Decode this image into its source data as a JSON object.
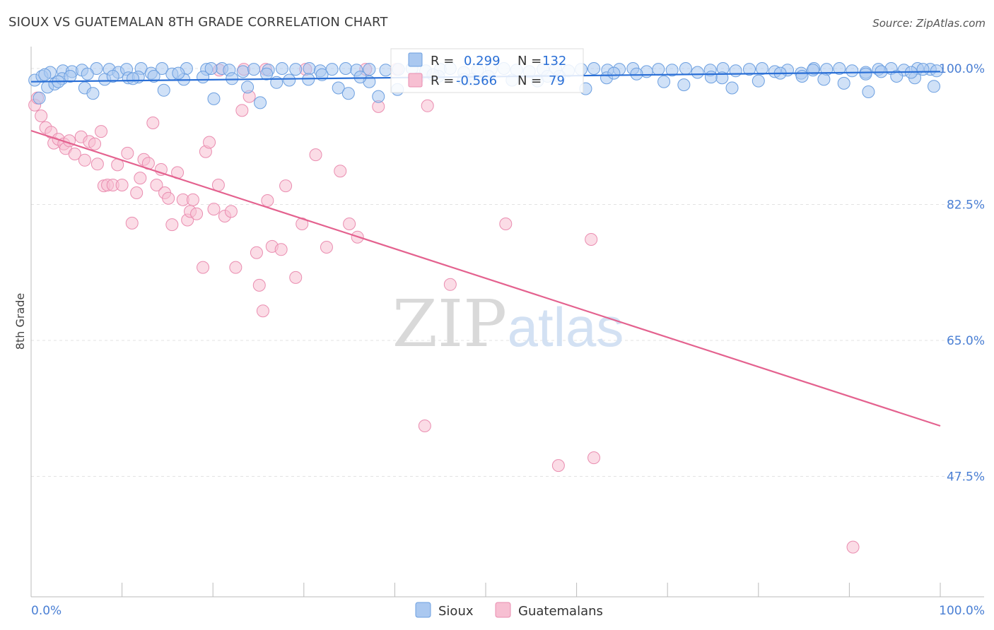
{
  "header": {
    "title": "SIOUX VS GUATEMALAN 8TH GRADE CORRELATION CHART",
    "source": "Source: ZipAtlas.com"
  },
  "watermark": {
    "zip": "ZIP",
    "atlas": "atlas"
  },
  "colors": {
    "sioux_fill": "#aac8f0",
    "sioux_stroke": "#6c9fe0",
    "sioux_line": "#2a6fd6",
    "guat_fill": "#f7bfd2",
    "guat_stroke": "#ea8db0",
    "guat_line": "#e4628f",
    "tick_text": "#4a7fd4",
    "grid": "#e3e3e3"
  },
  "chart_data": {
    "type": "scatter",
    "title": "SIOUX VS GUATEMALAN 8TH GRADE CORRELATION CHART",
    "ylabel": "8th Grade",
    "xlabel": "",
    "xlim": [
      0,
      100
    ],
    "ylim": [
      32.0,
      102.0
    ],
    "x_tick_labels": [
      {
        "value": 0,
        "label": "0.0%"
      },
      {
        "value": 100,
        "label": "100.0%"
      }
    ],
    "y_tick_labels": [
      {
        "value": 100.0,
        "label": "100.0%"
      },
      {
        "value": 82.5,
        "label": "82.5%"
      },
      {
        "value": 65.0,
        "label": "65.0%"
      },
      {
        "value": 47.5,
        "label": "47.5%"
      }
    ],
    "y_grid_values": [
      100.0,
      82.5,
      65.0,
      47.5
    ],
    "legend": {
      "placement": "top-center",
      "entries": [
        {
          "series": "Sioux",
          "r_label": "R =",
          "r_value": "0.299",
          "n_label": "N =",
          "n_value": "132"
        },
        {
          "series": "Guatemalans",
          "r_label": "R =",
          "r_value": "-0.566",
          "n_label": "N =",
          "n_value": "79"
        }
      ]
    },
    "bottom_legend": [
      "Sioux",
      "Guatemalans"
    ],
    "series": [
      {
        "name": "Sioux",
        "trend": [
          [
            0,
            98.3
          ],
          [
            100,
            99.6
          ]
        ],
        "points": [
          [
            0.4,
            98.5
          ],
          [
            1.2,
            99.0
          ],
          [
            2.1,
            99.5
          ],
          [
            3.5,
            99.7
          ],
          [
            4.5,
            99.6
          ],
          [
            5.6,
            99.8
          ],
          [
            7.2,
            100.0
          ],
          [
            8.6,
            99.9
          ],
          [
            9.6,
            99.5
          ],
          [
            10.5,
            99.9
          ],
          [
            12.1,
            100.0
          ],
          [
            13.2,
            99.4
          ],
          [
            14.4,
            100.0
          ],
          [
            15.5,
            99.3
          ],
          [
            17.1,
            100.0
          ],
          [
            19.3,
            99.9
          ],
          [
            21.0,
            100.0
          ],
          [
            21.8,
            99.8
          ],
          [
            23.3,
            99.6
          ],
          [
            24.5,
            99.9
          ],
          [
            26.1,
            99.8
          ],
          [
            27.6,
            100.0
          ],
          [
            29.1,
            99.9
          ],
          [
            30.6,
            100.0
          ],
          [
            31.8,
            99.7
          ],
          [
            33.1,
            99.9
          ],
          [
            34.6,
            100.0
          ],
          [
            35.8,
            99.8
          ],
          [
            37.2,
            99.9
          ],
          [
            39.0,
            99.8
          ],
          [
            40.4,
            99.9
          ],
          [
            41.9,
            100.0
          ],
          [
            43.4,
            99.7
          ],
          [
            45.0,
            99.9
          ],
          [
            46.1,
            100.0
          ],
          [
            47.6,
            99.5
          ],
          [
            49.1,
            99.8
          ],
          [
            50.6,
            99.9
          ],
          [
            52.0,
            100.0
          ],
          [
            53.4,
            99.8
          ],
          [
            54.8,
            99.6
          ],
          [
            56.3,
            99.9
          ],
          [
            57.7,
            100.0
          ],
          [
            59.1,
            99.7
          ],
          [
            60.5,
            99.9
          ],
          [
            61.9,
            100.0
          ],
          [
            63.4,
            99.8
          ],
          [
            64.7,
            99.9
          ],
          [
            66.2,
            100.0
          ],
          [
            67.7,
            99.6
          ],
          [
            69.0,
            99.9
          ],
          [
            70.5,
            99.8
          ],
          [
            72.0,
            100.0
          ],
          [
            73.3,
            99.5
          ],
          [
            74.7,
            99.8
          ],
          [
            76.1,
            100.0
          ],
          [
            77.5,
            99.7
          ],
          [
            79.0,
            99.9
          ],
          [
            80.4,
            100.0
          ],
          [
            81.8,
            99.6
          ],
          [
            83.2,
            99.8
          ],
          [
            84.7,
            99.4
          ],
          [
            86.1,
            100.0
          ],
          [
            87.5,
            99.9
          ],
          [
            88.9,
            100.0
          ],
          [
            90.3,
            99.7
          ],
          [
            91.8,
            99.5
          ],
          [
            93.2,
            99.9
          ],
          [
            94.6,
            100.0
          ],
          [
            96.0,
            99.8
          ],
          [
            97.5,
            100.0
          ],
          [
            98.9,
            99.9
          ],
          [
            99.6,
            99.7
          ],
          [
            0.9,
            96.2
          ],
          [
            1.8,
            97.6
          ],
          [
            2.6,
            98.0
          ],
          [
            3.4,
            98.7
          ],
          [
            4.3,
            99.0
          ],
          [
            5.9,
            97.5
          ],
          [
            6.8,
            96.8
          ],
          [
            8.1,
            98.6
          ],
          [
            9.0,
            99.0
          ],
          [
            10.7,
            98.8
          ],
          [
            11.8,
            98.9
          ],
          [
            13.5,
            99.0
          ],
          [
            14.6,
            97.2
          ],
          [
            16.8,
            98.6
          ],
          [
            18.9,
            98.9
          ],
          [
            20.1,
            96.1
          ],
          [
            22.1,
            98.7
          ],
          [
            23.8,
            97.6
          ],
          [
            25.2,
            95.6
          ],
          [
            27.0,
            98.2
          ],
          [
            28.4,
            98.5
          ],
          [
            30.5,
            98.6
          ],
          [
            33.8,
            97.5
          ],
          [
            34.9,
            96.8
          ],
          [
            37.2,
            98.3
          ],
          [
            38.2,
            96.4
          ],
          [
            40.3,
            97.3
          ],
          [
            42.5,
            98.7
          ],
          [
            44.8,
            99.0
          ],
          [
            47.6,
            98.6
          ],
          [
            50.3,
            99.0
          ],
          [
            52.9,
            98.5
          ],
          [
            55.7,
            98.4
          ],
          [
            58.1,
            99.0
          ],
          [
            61.0,
            97.4
          ],
          [
            63.3,
            98.8
          ],
          [
            66.6,
            99.3
          ],
          [
            69.6,
            98.3
          ],
          [
            71.8,
            97.9
          ],
          [
            74.8,
            98.9
          ],
          [
            77.1,
            97.5
          ],
          [
            80.0,
            98.4
          ],
          [
            82.4,
            99.4
          ],
          [
            84.8,
            99.0
          ],
          [
            87.2,
            98.6
          ],
          [
            89.4,
            98.1
          ],
          [
            91.8,
            99.3
          ],
          [
            93.5,
            99.6
          ],
          [
            95.2,
            99.0
          ],
          [
            97.2,
            98.8
          ],
          [
            99.3,
            97.7
          ],
          [
            1.5,
            99.2
          ],
          [
            3.0,
            98.3
          ],
          [
            6.2,
            99.3
          ],
          [
            11.2,
            98.7
          ],
          [
            16.2,
            99.4
          ],
          [
            19.8,
            100.0
          ],
          [
            25.9,
            99.3
          ],
          [
            32.0,
            99.2
          ],
          [
            36.2,
            98.9
          ],
          [
            44.2,
            99.2
          ],
          [
            48.5,
            98.6
          ],
          [
            56.8,
            99.0
          ],
          [
            64.1,
            99.4
          ],
          [
            76.0,
            98.8
          ],
          [
            86.0,
            99.8
          ],
          [
            92.1,
            97.0
          ],
          [
            96.8,
            99.5
          ],
          [
            98.1,
            99.9
          ]
        ]
      },
      {
        "name": "Guatemalans",
        "trend": [
          [
            0,
            92.0
          ],
          [
            100,
            54.0
          ]
        ],
        "points": [
          [
            0.4,
            95.3
          ],
          [
            0.7,
            96.2
          ],
          [
            1.1,
            93.9
          ],
          [
            1.6,
            92.4
          ],
          [
            2.2,
            91.8
          ],
          [
            2.5,
            90.4
          ],
          [
            3.0,
            90.9
          ],
          [
            3.6,
            90.3
          ],
          [
            3.8,
            89.7
          ],
          [
            4.2,
            90.7
          ],
          [
            4.8,
            89.0
          ],
          [
            5.5,
            91.2
          ],
          [
            5.9,
            88.2
          ],
          [
            6.4,
            90.6
          ],
          [
            7.0,
            90.3
          ],
          [
            7.3,
            87.7
          ],
          [
            7.7,
            91.9
          ],
          [
            8.0,
            84.9
          ],
          [
            8.4,
            85.0
          ],
          [
            9.0,
            85.0
          ],
          [
            9.5,
            87.6
          ],
          [
            10.0,
            85.0
          ],
          [
            10.6,
            89.1
          ],
          [
            11.1,
            80.1
          ],
          [
            11.6,
            84.0
          ],
          [
            12.0,
            85.9
          ],
          [
            12.4,
            88.3
          ],
          [
            12.9,
            87.8
          ],
          [
            13.4,
            93.0
          ],
          [
            13.8,
            85.0
          ],
          [
            14.3,
            87.0
          ],
          [
            14.7,
            84.0
          ],
          [
            15.1,
            83.3
          ],
          [
            15.5,
            79.9
          ],
          [
            16.1,
            86.6
          ],
          [
            16.7,
            83.1
          ],
          [
            17.2,
            80.5
          ],
          [
            17.5,
            81.6
          ],
          [
            17.8,
            83.1
          ],
          [
            18.2,
            81.3
          ],
          [
            18.9,
            74.4
          ],
          [
            19.2,
            89.3
          ],
          [
            19.6,
            90.5
          ],
          [
            20.1,
            81.9
          ],
          [
            20.6,
            85.0
          ],
          [
            21.3,
            81.0
          ],
          [
            22.0,
            81.6
          ],
          [
            22.5,
            74.4
          ],
          [
            23.2,
            94.6
          ],
          [
            24.0,
            96.4
          ],
          [
            24.8,
            76.3
          ],
          [
            25.1,
            72.1
          ],
          [
            25.5,
            68.8
          ],
          [
            26.0,
            83.0
          ],
          [
            26.5,
            77.1
          ],
          [
            27.5,
            76.7
          ],
          [
            28.0,
            84.9
          ],
          [
            29.1,
            73.1
          ],
          [
            29.8,
            80.0
          ],
          [
            31.3,
            88.9
          ],
          [
            32.5,
            77.0
          ],
          [
            34.0,
            86.8
          ],
          [
            35.0,
            80.0
          ],
          [
            35.9,
            78.3
          ],
          [
            38.2,
            95.1
          ],
          [
            40.2,
            99.9
          ],
          [
            43.3,
            54.0
          ],
          [
            43.6,
            95.2
          ],
          [
            46.1,
            72.2
          ],
          [
            52.2,
            80.0
          ],
          [
            58.0,
            48.9
          ],
          [
            61.9,
            49.9
          ],
          [
            61.6,
            78.0
          ],
          [
            90.4,
            38.4
          ],
          [
            20.7,
            99.8
          ],
          [
            23.4,
            99.9
          ],
          [
            30.2,
            99.9
          ],
          [
            25.8,
            99.9
          ],
          [
            36.8,
            99.9
          ]
        ]
      }
    ]
  }
}
